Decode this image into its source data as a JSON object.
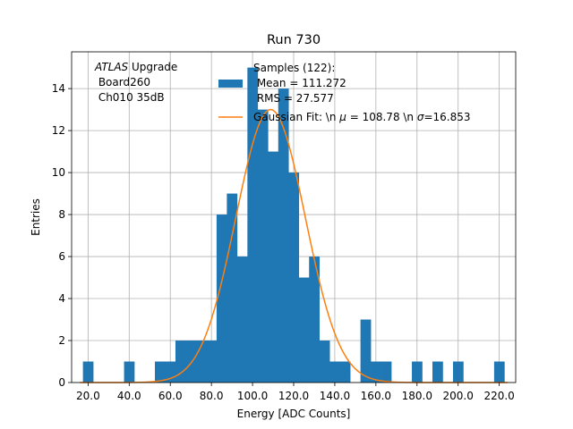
{
  "chart_data": {
    "type": "bar",
    "title": "Run 730",
    "xlabel": "Energy [ADC Counts]",
    "ylabel": "Entries",
    "xlim": [
      12.0,
      228.0
    ],
    "ylim": [
      0,
      15.75
    ],
    "bin_width": 5.0,
    "grid": true,
    "bins": [
      {
        "x": 20,
        "count": 1
      },
      {
        "x": 40,
        "count": 1
      },
      {
        "x": 55,
        "count": 1
      },
      {
        "x": 60,
        "count": 1
      },
      {
        "x": 65,
        "count": 2
      },
      {
        "x": 70,
        "count": 2
      },
      {
        "x": 75,
        "count": 2
      },
      {
        "x": 80,
        "count": 2
      },
      {
        "x": 85,
        "count": 8
      },
      {
        "x": 90,
        "count": 9
      },
      {
        "x": 95,
        "count": 6
      },
      {
        "x": 100,
        "count": 15
      },
      {
        "x": 105,
        "count": 13
      },
      {
        "x": 110,
        "count": 11
      },
      {
        "x": 115,
        "count": 14
      },
      {
        "x": 120,
        "count": 10
      },
      {
        "x": 125,
        "count": 5
      },
      {
        "x": 130,
        "count": 6
      },
      {
        "x": 135,
        "count": 2
      },
      {
        "x": 140,
        "count": 1
      },
      {
        "x": 145,
        "count": 1
      },
      {
        "x": 155,
        "count": 3
      },
      {
        "x": 160,
        "count": 1
      },
      {
        "x": 165,
        "count": 1
      },
      {
        "x": 180,
        "count": 1
      },
      {
        "x": 190,
        "count": 1
      },
      {
        "x": 200,
        "count": 1
      },
      {
        "x": 220,
        "count": 1
      }
    ],
    "x_ticks": [
      20,
      40,
      60,
      80,
      100,
      120,
      140,
      160,
      180,
      200,
      220
    ],
    "x_tick_labels": [
      "20.0",
      "40.0",
      "60.0",
      "80.0",
      "100.0",
      "120.0",
      "140.0",
      "160.0",
      "180.0",
      "200.0",
      "220.0"
    ],
    "y_ticks": [
      0,
      2,
      4,
      6,
      8,
      10,
      12,
      14
    ],
    "y_tick_labels": [
      "0",
      "2",
      "4",
      "6",
      "8",
      "10",
      "12",
      "14"
    ],
    "fit": {
      "type": "gaussian",
      "mu": 108.78,
      "sigma": 16.853,
      "amplitude": 13.0
    },
    "colors": {
      "hist": "#1f77b4",
      "fit": "#ff7f0e",
      "grid": "#b0b0b0"
    },
    "annotation": {
      "atlas": "ATLAS",
      "upgrade": " Upgrade",
      "line2": " Board260",
      "line3": " Ch010 35dB"
    },
    "legend": {
      "hist_line1": "Samples (122):",
      "hist_line2": " Mean = 111.272",
      "hist_line3": " RMS = 27.577",
      "fit_label_prefix": "Gaussian Fit: \\n ",
      "fit_mu_symbol": "μ",
      "fit_mu_value": " = 108.78 \\n ",
      "fit_sigma_symbol": "σ",
      "fit_sigma_value": "=16.853"
    }
  }
}
